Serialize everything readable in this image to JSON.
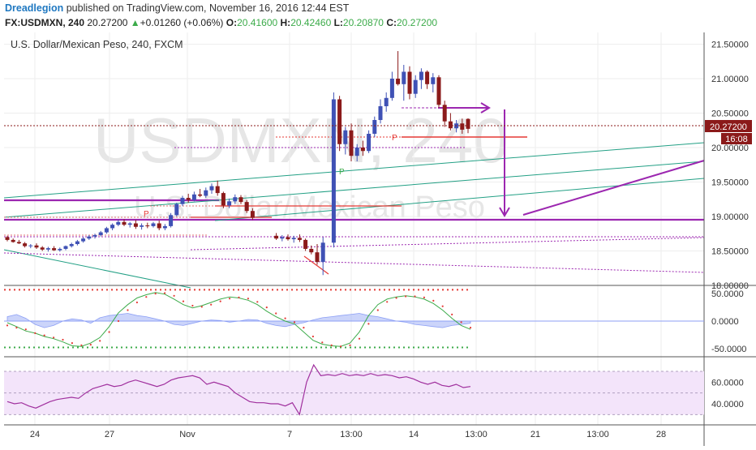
{
  "header": {
    "author": "Dreadlegion",
    "published": "published on TradingView.com, November 16, 2016 12:44 EST",
    "symbol": "FX:USDMXN, 240",
    "last": "20.27200",
    "change_arrow": "▲",
    "change": "+0.01260 (+0.06%)",
    "o_label": "O:",
    "o_value": "20.41600",
    "h_label": "H:",
    "h_value": "20.42460",
    "l_label": "L:",
    "l_value": "20.20870",
    "c_label": "C:",
    "c_value": "20.27200"
  },
  "chart_data": {
    "type": "candlestick",
    "title": "U.S. Dollar/Mexican Peso, 240, FXCM",
    "watermark_top": "USDMXN, 240",
    "watermark_bottom": "U.S. Dollar/Mexican Peso",
    "price_ticks": [
      "21.50000",
      "21.00000",
      "20.50000",
      "20.00000",
      "19.50000",
      "19.00000",
      "18.50000",
      "18.00000"
    ],
    "price_tick_values": [
      21.5,
      21.0,
      20.5,
      20.0,
      19.5,
      19.0,
      18.5,
      18.0
    ],
    "ylim": [
      18.0,
      21.6
    ],
    "current_price_label": "20.27200",
    "current_price": 20.272,
    "countdown_label": "16:08",
    "x_ticks": [
      "24",
      "27",
      "Nov",
      "7",
      "13:00",
      "14",
      "13:00",
      "21",
      "13:00",
      "28"
    ],
    "candles_ohlc": [
      [
        18.7,
        18.72,
        18.64,
        18.66
      ],
      [
        18.66,
        18.68,
        18.62,
        18.63
      ],
      [
        18.63,
        18.66,
        18.6,
        18.61
      ],
      [
        18.61,
        18.63,
        18.55,
        18.57
      ],
      [
        18.57,
        18.6,
        18.54,
        18.58
      ],
      [
        18.58,
        18.61,
        18.53,
        18.55
      ],
      [
        18.55,
        18.57,
        18.5,
        18.52
      ],
      [
        18.52,
        18.56,
        18.49,
        18.54
      ],
      [
        18.54,
        18.57,
        18.5,
        18.51
      ],
      [
        18.51,
        18.55,
        18.49,
        18.53
      ],
      [
        18.53,
        18.58,
        18.51,
        18.57
      ],
      [
        18.57,
        18.62,
        18.55,
        18.6
      ],
      [
        18.6,
        18.66,
        18.58,
        18.64
      ],
      [
        18.64,
        18.7,
        18.62,
        18.68
      ],
      [
        18.68,
        18.73,
        18.66,
        18.71
      ],
      [
        18.71,
        18.75,
        18.68,
        18.73
      ],
      [
        18.73,
        18.79,
        18.71,
        18.77
      ],
      [
        18.77,
        18.85,
        18.75,
        18.83
      ],
      [
        18.83,
        18.9,
        18.8,
        18.88
      ],
      [
        18.88,
        18.95,
        18.86,
        18.92
      ],
      [
        18.92,
        18.96,
        18.86,
        18.88
      ],
      [
        18.88,
        18.92,
        18.84,
        18.9
      ],
      [
        18.9,
        18.95,
        18.82,
        18.85
      ],
      [
        18.85,
        18.9,
        18.81,
        18.87
      ],
      [
        18.87,
        18.91,
        18.83,
        18.86
      ],
      [
        18.86,
        18.92,
        18.84,
        18.9
      ],
      [
        18.9,
        18.94,
        18.8,
        18.83
      ],
      [
        18.83,
        18.89,
        18.8,
        18.86
      ],
      [
        18.86,
        19.05,
        18.84,
        19.02
      ],
      [
        19.02,
        19.2,
        19.0,
        19.18
      ],
      [
        19.18,
        19.3,
        19.15,
        19.27
      ],
      [
        19.27,
        19.33,
        19.2,
        19.24
      ],
      [
        19.24,
        19.36,
        19.22,
        19.32
      ],
      [
        19.32,
        19.4,
        19.28,
        19.3
      ],
      [
        19.3,
        19.42,
        19.27,
        19.38
      ],
      [
        19.38,
        19.48,
        19.33,
        19.44
      ],
      [
        19.44,
        19.52,
        19.3,
        19.34
      ],
      [
        19.34,
        19.36,
        19.12,
        19.16
      ],
      [
        19.16,
        19.26,
        19.12,
        19.22
      ],
      [
        19.22,
        19.32,
        19.18,
        19.28
      ],
      [
        19.28,
        19.31,
        19.18,
        19.21
      ],
      [
        19.21,
        19.24,
        19.05,
        19.08
      ],
      [
        19.08,
        19.12,
        18.95,
        18.98
      ],
      [
        18.72,
        18.76,
        18.66,
        18.68
      ],
      [
        18.68,
        18.73,
        18.64,
        18.7
      ],
      [
        18.7,
        18.74,
        18.65,
        18.67
      ],
      [
        18.67,
        18.72,
        18.62,
        18.69
      ],
      [
        18.69,
        18.74,
        18.63,
        18.66
      ],
      [
        18.66,
        18.68,
        18.5,
        18.53
      ],
      [
        18.53,
        18.58,
        18.45,
        18.48
      ],
      [
        18.48,
        18.6,
        18.3,
        18.34
      ],
      [
        18.34,
        18.7,
        18.15,
        18.62
      ],
      [
        18.62,
        20.8,
        18.55,
        20.7
      ],
      [
        20.7,
        20.75,
        19.95,
        20.05
      ],
      [
        20.05,
        20.3,
        19.9,
        20.25
      ],
      [
        20.25,
        20.35,
        19.8,
        19.88
      ],
      [
        19.88,
        20.05,
        19.8,
        20.0
      ],
      [
        20.0,
        20.1,
        19.88,
        19.95
      ],
      [
        19.95,
        20.25,
        19.92,
        20.2
      ],
      [
        20.2,
        20.45,
        20.15,
        20.4
      ],
      [
        20.4,
        20.7,
        20.35,
        20.6
      ],
      [
        20.6,
        20.8,
        20.52,
        20.72
      ],
      [
        20.72,
        21.1,
        20.68,
        21.0
      ],
      [
        21.0,
        21.4,
        20.9,
        20.92
      ],
      [
        20.92,
        21.2,
        20.68,
        21.1
      ],
      [
        21.1,
        21.18,
        20.7,
        20.78
      ],
      [
        20.78,
        21.05,
        20.72,
        20.98
      ],
      [
        20.98,
        21.15,
        20.85,
        21.1
      ],
      [
        21.1,
        21.12,
        20.85,
        20.92
      ],
      [
        20.92,
        21.08,
        20.8,
        21.02
      ],
      [
        21.02,
        21.05,
        20.58,
        20.62
      ],
      [
        20.62,
        20.68,
        20.3,
        20.38
      ],
      [
        20.38,
        20.5,
        20.25,
        20.28
      ],
      [
        20.28,
        20.4,
        20.22,
        20.35
      ],
      [
        20.35,
        20.42,
        20.2,
        20.26
      ],
      [
        20.416,
        20.4246,
        20.2087,
        20.272
      ]
    ],
    "stoch_ticks": [
      "50.0000",
      "0.0000",
      "-50.0000"
    ],
    "stoch_tick_values": [
      50,
      0,
      -50
    ],
    "stoch_ylim": [
      -62,
      62
    ],
    "stoch_levels": [
      57,
      -48
    ],
    "stoch_k": [
      -3,
      -10,
      -18,
      -22,
      -28,
      -32,
      -38,
      -45,
      -46,
      -40,
      -30,
      -10,
      15,
      30,
      42,
      48,
      52,
      49,
      40,
      30,
      24,
      28,
      34,
      40,
      44,
      42,
      38,
      30,
      18,
      8,
      0,
      -5,
      -20,
      -35,
      -42,
      -45,
      -46,
      -40,
      -20,
      10,
      30,
      40,
      44,
      46,
      44,
      40,
      32,
      20,
      5,
      -8,
      -15
    ],
    "stoch_d": [
      -8,
      -12,
      -15,
      -22,
      -26,
      -30,
      -34,
      -40,
      -44,
      -43,
      -36,
      -20,
      0,
      20,
      34,
      44,
      50,
      51,
      46,
      36,
      28,
      26,
      30,
      36,
      41,
      43,
      41,
      35,
      25,
      14,
      5,
      -2,
      -12,
      -28,
      -39,
      -44,
      -46,
      -44,
      -32,
      -5,
      20,
      35,
      42,
      45,
      45,
      43,
      37,
      27,
      12,
      -2,
      -12
    ],
    "stoch_hist": [
      8,
      12,
      5,
      -6,
      -12,
      -8,
      0,
      4,
      2,
      -4,
      6,
      10,
      12,
      14,
      10,
      8,
      4,
      0,
      -6,
      -8,
      -4,
      0,
      2,
      1,
      -2,
      0,
      3,
      2,
      -4,
      -8,
      -10,
      -6,
      -3,
      2,
      6,
      8,
      10,
      12,
      14,
      10,
      8,
      4,
      0,
      -2,
      -6,
      -8,
      -10,
      -12,
      -8,
      -6,
      -4
    ],
    "rsi_ticks": [
      "60.0000",
      "40.0000"
    ],
    "rsi_tick_values": [
      60,
      40
    ],
    "rsi_ylim": [
      22,
      82
    ],
    "rsi_band": [
      30,
      70
    ],
    "rsi_values": [
      42,
      40,
      41,
      38,
      36,
      39,
      42,
      44,
      45,
      46,
      45,
      50,
      54,
      56,
      58,
      56,
      57,
      60,
      62,
      60,
      58,
      56,
      58,
      62,
      64,
      65,
      66,
      64,
      58,
      60,
      58,
      56,
      50,
      46,
      42,
      41,
      41,
      40,
      40,
      38,
      41,
      30,
      60,
      76,
      66,
      67,
      66,
      68,
      66,
      67,
      66,
      68,
      66,
      67,
      66,
      64,
      65,
      63,
      60,
      58,
      60,
      57,
      56,
      58,
      55,
      56
    ]
  },
  "colors": {
    "bull": "#3f51b5",
    "bear": "#8b1a1a",
    "magenta": "#9c27b0",
    "teal": "#23a085",
    "red": "#e53935",
    "green": "#3cab4a",
    "stoch_fill": "#8c9ff5",
    "rsi": "#a0309e",
    "rsi_band": "#f3e4fa"
  }
}
